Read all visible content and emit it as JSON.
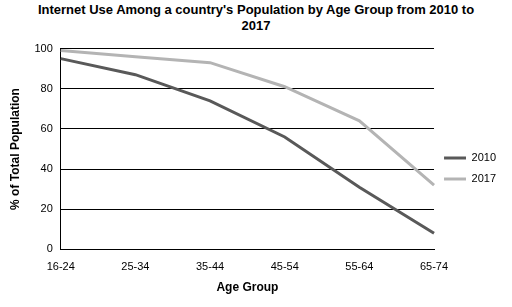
{
  "chart_data": {
    "type": "line",
    "title": "Internet Use Among a country's Population by Age Group from 2010 to 2017",
    "x_label": "Age Group",
    "y_label": "% of Total Population",
    "categories": [
      "16-24",
      "25-34",
      "35-44",
      "45-54",
      "55-64",
      "65-74"
    ],
    "series": [
      {
        "name": "2010",
        "color": "#595959",
        "values": [
          95,
          87,
          74,
          56,
          31,
          8
        ]
      },
      {
        "name": "2017",
        "color": "#b4b4b4",
        "values": [
          99,
          96,
          93,
          81,
          64,
          32
        ]
      }
    ],
    "ylim": [
      0,
      100
    ],
    "yticks": [
      0,
      20,
      40,
      60,
      80,
      100
    ],
    "grid": true,
    "legend": "right"
  }
}
